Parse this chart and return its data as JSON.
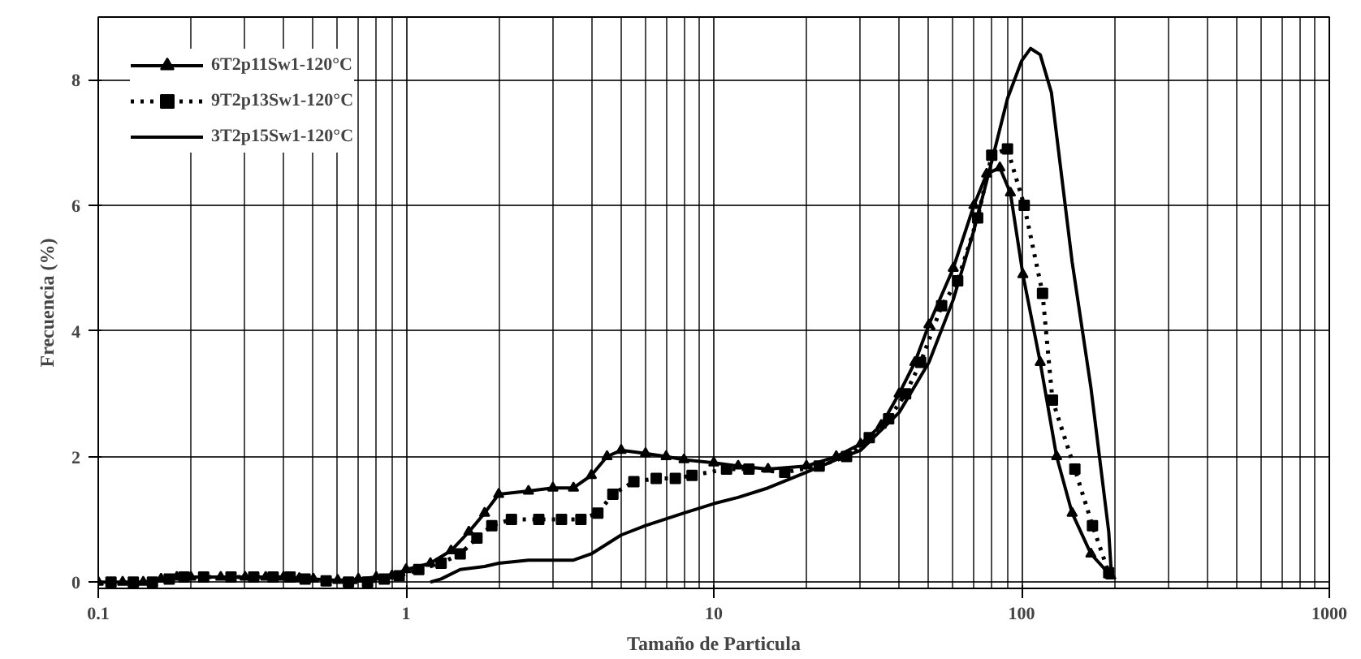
{
  "chart_data": {
    "type": "line",
    "xlabel": "Tamaño de Particula",
    "ylabel": "Frecuencia (%)",
    "log": "x",
    "xlim": [
      0.1,
      1000
    ],
    "xticks": [
      0.1,
      1,
      10,
      100,
      1000
    ],
    "ylim": [
      -0.1,
      9
    ],
    "yticks": [
      0,
      2,
      4,
      6,
      8
    ],
    "grid": true,
    "legend": "top left",
    "series": [
      {
        "name": "6T2p11Sw1-120°C",
        "color": "#000000",
        "marker": "triangle",
        "line_style": "solid",
        "x": [
          0.1,
          0.12,
          0.14,
          0.16,
          0.18,
          0.2,
          0.25,
          0.3,
          0.35,
          0.4,
          0.45,
          0.5,
          0.6,
          0.7,
          0.8,
          0.9,
          1,
          1.2,
          1.4,
          1.6,
          1.8,
          2,
          2.5,
          3,
          3.5,
          4,
          4.5,
          5,
          6,
          7,
          8,
          10,
          12,
          15,
          20,
          25,
          30,
          35,
          40,
          45,
          50,
          60,
          70,
          77,
          85,
          92,
          101,
          115,
          130,
          146,
          168,
          195
        ],
        "values": [
          0,
          0,
          0,
          0.05,
          0.08,
          0.08,
          0.08,
          0.08,
          0.08,
          0.08,
          0.06,
          0.05,
          0.03,
          0.05,
          0.08,
          0.1,
          0.2,
          0.3,
          0.5,
          0.8,
          1.1,
          1.4,
          1.45,
          1.5,
          1.5,
          1.7,
          2.0,
          2.1,
          2.05,
          2.0,
          1.95,
          1.9,
          1.85,
          1.8,
          1.85,
          2.0,
          2.2,
          2.5,
          3.0,
          3.5,
          4.1,
          5.0,
          6.0,
          6.5,
          6.6,
          6.2,
          4.9,
          3.5,
          2.0,
          1.1,
          0.45,
          0.1
        ]
      },
      {
        "name": "9T2p13Sw1-120°C",
        "color": "#000000",
        "marker": "square",
        "line_style": "dotted",
        "x": [
          0.11,
          0.13,
          0.15,
          0.17,
          0.19,
          0.22,
          0.27,
          0.32,
          0.37,
          0.42,
          0.47,
          0.55,
          0.65,
          0.75,
          0.85,
          0.95,
          1.1,
          1.3,
          1.5,
          1.7,
          1.9,
          2.2,
          2.7,
          3.2,
          3.7,
          4.2,
          4.7,
          5.5,
          6.5,
          7.5,
          8.5,
          11,
          13,
          17,
          22,
          27,
          32,
          37,
          42,
          47,
          55,
          62,
          72,
          80,
          90,
          102,
          117,
          126,
          149,
          170,
          192
        ],
        "values": [
          0,
          0,
          0,
          0.05,
          0.08,
          0.08,
          0.08,
          0.08,
          0.08,
          0.08,
          0.05,
          0.02,
          0.0,
          0.0,
          0.05,
          0.1,
          0.2,
          0.3,
          0.45,
          0.7,
          0.9,
          1.0,
          1.0,
          1.0,
          1.0,
          1.1,
          1.4,
          1.6,
          1.65,
          1.65,
          1.7,
          1.8,
          1.8,
          1.75,
          1.85,
          2.0,
          2.3,
          2.6,
          3.0,
          3.5,
          4.4,
          4.8,
          5.8,
          6.8,
          6.9,
          6.0,
          4.6,
          2.9,
          1.8,
          0.9,
          0.15
        ]
      },
      {
        "name": "3T2p15Sw1-120°C",
        "color": "#000000",
        "marker": "none",
        "line_style": "solid",
        "x": [
          1.2,
          1.3,
          1.5,
          1.8,
          2,
          2.5,
          3,
          3.5,
          4,
          5,
          6,
          8,
          10,
          12,
          15,
          20,
          25,
          30,
          40,
          50,
          60,
          70,
          80,
          90,
          100,
          107,
          115,
          125,
          146,
          168,
          192,
          196
        ],
        "values": [
          0,
          0.05,
          0.2,
          0.25,
          0.3,
          0.35,
          0.35,
          0.35,
          0.45,
          0.75,
          0.9,
          1.1,
          1.25,
          1.35,
          1.5,
          1.75,
          1.95,
          2.1,
          2.7,
          3.5,
          4.5,
          5.6,
          6.7,
          7.7,
          8.3,
          8.5,
          8.4,
          7.8,
          5.1,
          3.1,
          0.8,
          0.1
        ]
      }
    ]
  }
}
